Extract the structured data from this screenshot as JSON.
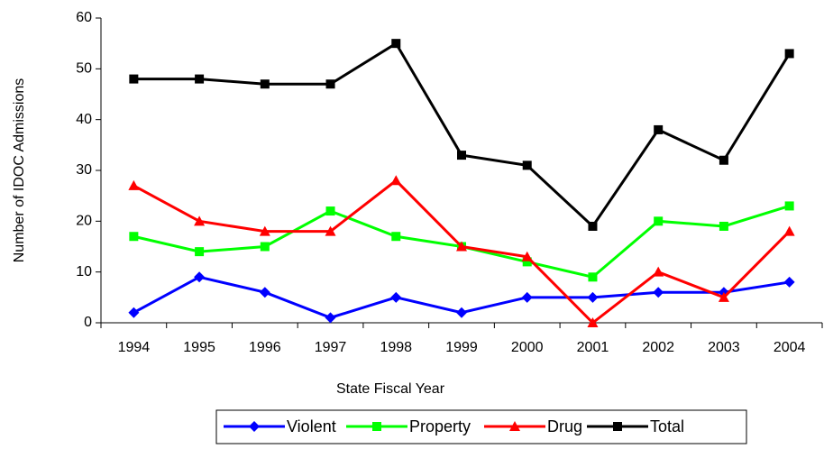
{
  "chart_data": {
    "type": "line",
    "x_label": "State Fiscal Year",
    "y_label": "Number of IDOC Admissions",
    "categories": [
      "1994",
      "1995",
      "1996",
      "1997",
      "1998",
      "1999",
      "2000",
      "2001",
      "2002",
      "2003",
      "2004"
    ],
    "series": [
      {
        "name": "Violent",
        "color": "#0000ff",
        "marker": "diamond",
        "values": [
          2,
          9,
          6,
          1,
          5,
          2,
          5,
          5,
          6,
          6,
          8
        ]
      },
      {
        "name": "Property",
        "color": "#00ff00",
        "marker": "square",
        "values": [
          17,
          14,
          15,
          22,
          17,
          15,
          12,
          9,
          20,
          19,
          23
        ]
      },
      {
        "name": "Drug",
        "color": "#ff0000",
        "marker": "triangle",
        "values": [
          27,
          20,
          18,
          18,
          28,
          15,
          13,
          0,
          10,
          5,
          18
        ]
      },
      {
        "name": "Total",
        "color": "#000000",
        "marker": "square",
        "values": [
          48,
          48,
          47,
          47,
          55,
          33,
          31,
          19,
          38,
          32,
          53
        ]
      }
    ],
    "ylim": [
      0,
      60
    ],
    "yticks": [
      0,
      10,
      20,
      30,
      40,
      50,
      60
    ],
    "grid": false,
    "legend": "bottom"
  }
}
